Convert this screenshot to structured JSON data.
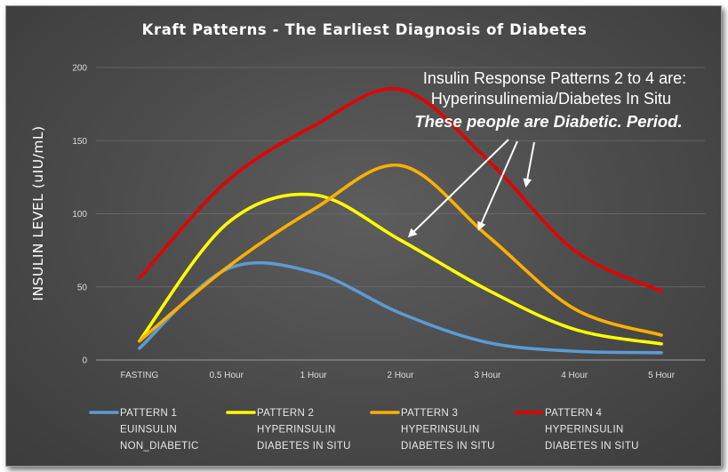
{
  "chart_data": {
    "type": "line",
    "title": "Kraft Patterns - The Earliest Diagnosis of Diabetes",
    "ylabel": "INSULIN LEVEL (uIU/mL)",
    "xlabel": "",
    "categories": [
      "FASTING",
      "0.5 Hour",
      "1 Hour",
      "2 Hour",
      "3 Hour",
      "4 Hour",
      "5 Hour"
    ],
    "ylim": [
      0,
      200
    ],
    "yticks": [
      "0",
      "50",
      "100",
      "150",
      "200"
    ],
    "grid": true,
    "legend_position": "bottom",
    "series": [
      {
        "name": "PATTERN 1",
        "label_lines": [
          "PATTERN 1",
          "EUINSULIN",
          "NON_DIABETIC"
        ],
        "color": "#5b9bd5",
        "values": [
          8,
          62,
          60,
          32,
          12,
          6,
          5
        ]
      },
      {
        "name": "PATTERN 2",
        "label_lines": [
          "PATTERN 2",
          "HYPERINSULIN",
          "DIABETES IN SITU"
        ],
        "color": "#ffff00",
        "values": [
          13,
          93,
          113,
          82,
          48,
          21,
          11
        ]
      },
      {
        "name": "PATTERN 3",
        "label_lines": [
          "PATTERN 3",
          "HYPERINSULIN",
          "DIABETES IN SITU"
        ],
        "color": "#ffb000",
        "values": [
          13,
          63,
          103,
          133,
          85,
          35,
          17
        ]
      },
      {
        "name": "PATTERN 4",
        "label_lines": [
          "PATTERN 4",
          "HYPERINSULIN",
          "DIABETES IN SITU"
        ],
        "color": "#e60000",
        "values": [
          56,
          122,
          160,
          185,
          137,
          75,
          47
        ]
      }
    ],
    "annotation": {
      "line1": "Insulin Response Patterns 2 to 4 are:",
      "line2": "Hyperinsulinemia/Diabetes In Situ",
      "line3": "These people are Diabetic. Period."
    }
  }
}
